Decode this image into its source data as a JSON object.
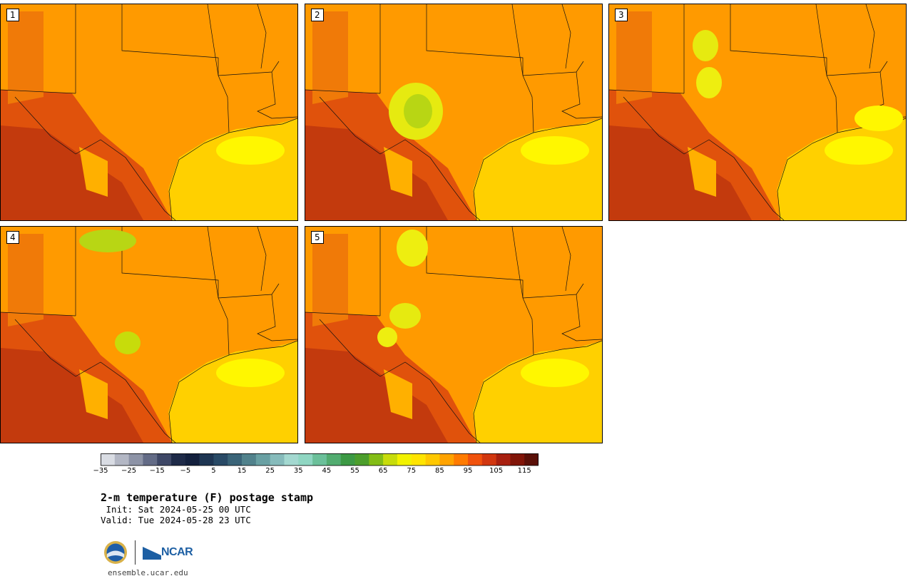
{
  "panels": [
    {
      "label": "1"
    },
    {
      "label": "2"
    },
    {
      "label": "3"
    },
    {
      "label": "4"
    },
    {
      "label": "5"
    }
  ],
  "colorbar": {
    "colors": [
      "#d9dce3",
      "#b3b7c4",
      "#8d93a6",
      "#636b86",
      "#3e4766",
      "#1e2a48",
      "#13203d",
      "#1e3552",
      "#294a66",
      "#3a6478",
      "#51828c",
      "#69a0a3",
      "#86bbbb",
      "#a3d8d0",
      "#8fd6c2",
      "#6bc09a",
      "#52ac70",
      "#3c9944",
      "#4c9e2c",
      "#83bd16",
      "#c7dc0b",
      "#f2f200",
      "#ffe400",
      "#ffc800",
      "#ffa300",
      "#ff7b00",
      "#f0520d",
      "#d13710",
      "#a82010",
      "#811508",
      "#5a1008"
    ],
    "tick_labels": [
      "−35",
      "−25",
      "−15",
      "−5",
      "5",
      "15",
      "25",
      "35",
      "45",
      "55",
      "65",
      "75",
      "85",
      "95",
      "105",
      "115"
    ]
  },
  "title": "2-m temperature (F) postage stamp",
  "init": " Init: Sat 2024-05-25 00 UTC",
  "valid": "Valid: Tue 2024-05-28 23 UTC",
  "logos": {
    "nsf": "NSF",
    "ncar": "NCAR"
  },
  "url": "ensemble.ucar.edu"
}
